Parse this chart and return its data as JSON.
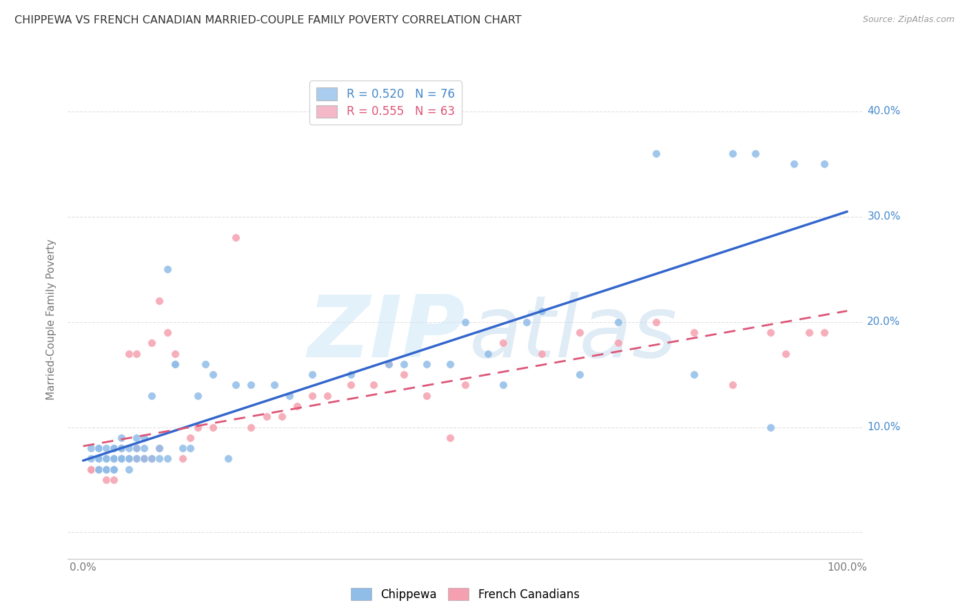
{
  "title": "CHIPPEWA VS FRENCH CANADIAN MARRIED-COUPLE FAMILY POVERTY CORRELATION CHART",
  "source": "Source: ZipAtlas.com",
  "ylabel": "Married-Couple Family Poverty",
  "ytick_values": [
    0.0,
    0.1,
    0.2,
    0.3,
    0.4
  ],
  "ytick_labels": [
    "",
    "10.0%",
    "20.0%",
    "30.0%",
    "40.0%"
  ],
  "xlim": [
    -0.02,
    1.02
  ],
  "ylim": [
    -0.025,
    0.43
  ],
  "chippewa_color": "#90bce8",
  "french_color": "#f5a0b0",
  "chippewa_line_color": "#3366cc",
  "french_line_color": "#dd5577",
  "legend_entries": [
    {
      "label": "R = 0.520   N = 76",
      "color": "#aaccee"
    },
    {
      "label": "R = 0.555   N = 63",
      "color": "#f5b8c8"
    }
  ],
  "background_color": "#ffffff",
  "grid_color": "#dddddd",
  "chippewa_x": [
    0.01,
    0.01,
    0.02,
    0.02,
    0.02,
    0.02,
    0.02,
    0.02,
    0.02,
    0.03,
    0.03,
    0.03,
    0.03,
    0.03,
    0.03,
    0.04,
    0.04,
    0.04,
    0.04,
    0.04,
    0.04,
    0.04,
    0.05,
    0.05,
    0.05,
    0.05,
    0.05,
    0.05,
    0.06,
    0.06,
    0.06,
    0.06,
    0.07,
    0.07,
    0.07,
    0.08,
    0.08,
    0.08,
    0.09,
    0.09,
    0.1,
    0.1,
    0.11,
    0.11,
    0.12,
    0.12,
    0.13,
    0.14,
    0.15,
    0.16,
    0.17,
    0.19,
    0.2,
    0.22,
    0.25,
    0.27,
    0.3,
    0.35,
    0.4,
    0.42,
    0.45,
    0.48,
    0.5,
    0.53,
    0.55,
    0.58,
    0.6,
    0.65,
    0.7,
    0.75,
    0.8,
    0.85,
    0.88,
    0.9,
    0.93,
    0.97
  ],
  "chippewa_y": [
    0.07,
    0.08,
    0.06,
    0.07,
    0.08,
    0.08,
    0.07,
    0.06,
    0.06,
    0.06,
    0.07,
    0.08,
    0.07,
    0.06,
    0.07,
    0.07,
    0.08,
    0.08,
    0.07,
    0.06,
    0.06,
    0.06,
    0.07,
    0.07,
    0.08,
    0.08,
    0.09,
    0.07,
    0.08,
    0.07,
    0.06,
    0.07,
    0.09,
    0.08,
    0.07,
    0.08,
    0.07,
    0.09,
    0.07,
    0.13,
    0.07,
    0.08,
    0.07,
    0.25,
    0.16,
    0.16,
    0.08,
    0.08,
    0.13,
    0.16,
    0.15,
    0.07,
    0.14,
    0.14,
    0.14,
    0.13,
    0.15,
    0.15,
    0.16,
    0.16,
    0.16,
    0.16,
    0.2,
    0.17,
    0.14,
    0.2,
    0.21,
    0.15,
    0.2,
    0.36,
    0.15,
    0.36,
    0.36,
    0.1,
    0.35,
    0.35
  ],
  "french_x": [
    0.01,
    0.01,
    0.02,
    0.02,
    0.02,
    0.02,
    0.03,
    0.03,
    0.03,
    0.03,
    0.03,
    0.04,
    0.04,
    0.04,
    0.04,
    0.04,
    0.05,
    0.05,
    0.05,
    0.05,
    0.06,
    0.06,
    0.06,
    0.07,
    0.07,
    0.07,
    0.08,
    0.08,
    0.09,
    0.09,
    0.1,
    0.1,
    0.11,
    0.12,
    0.13,
    0.14,
    0.15,
    0.17,
    0.2,
    0.22,
    0.24,
    0.26,
    0.28,
    0.3,
    0.32,
    0.35,
    0.38,
    0.4,
    0.42,
    0.45,
    0.48,
    0.5,
    0.55,
    0.6,
    0.65,
    0.7,
    0.75,
    0.8,
    0.85,
    0.9,
    0.92,
    0.95,
    0.97
  ],
  "french_y": [
    0.06,
    0.06,
    0.06,
    0.06,
    0.06,
    0.06,
    0.06,
    0.06,
    0.05,
    0.06,
    0.06,
    0.06,
    0.05,
    0.06,
    0.06,
    0.07,
    0.07,
    0.07,
    0.07,
    0.08,
    0.07,
    0.17,
    0.07,
    0.17,
    0.07,
    0.08,
    0.07,
    0.07,
    0.18,
    0.07,
    0.08,
    0.22,
    0.19,
    0.17,
    0.07,
    0.09,
    0.1,
    0.1,
    0.28,
    0.1,
    0.11,
    0.11,
    0.12,
    0.13,
    0.13,
    0.14,
    0.14,
    0.16,
    0.15,
    0.13,
    0.09,
    0.14,
    0.18,
    0.17,
    0.19,
    0.18,
    0.2,
    0.19,
    0.14,
    0.19,
    0.17,
    0.19,
    0.19
  ]
}
